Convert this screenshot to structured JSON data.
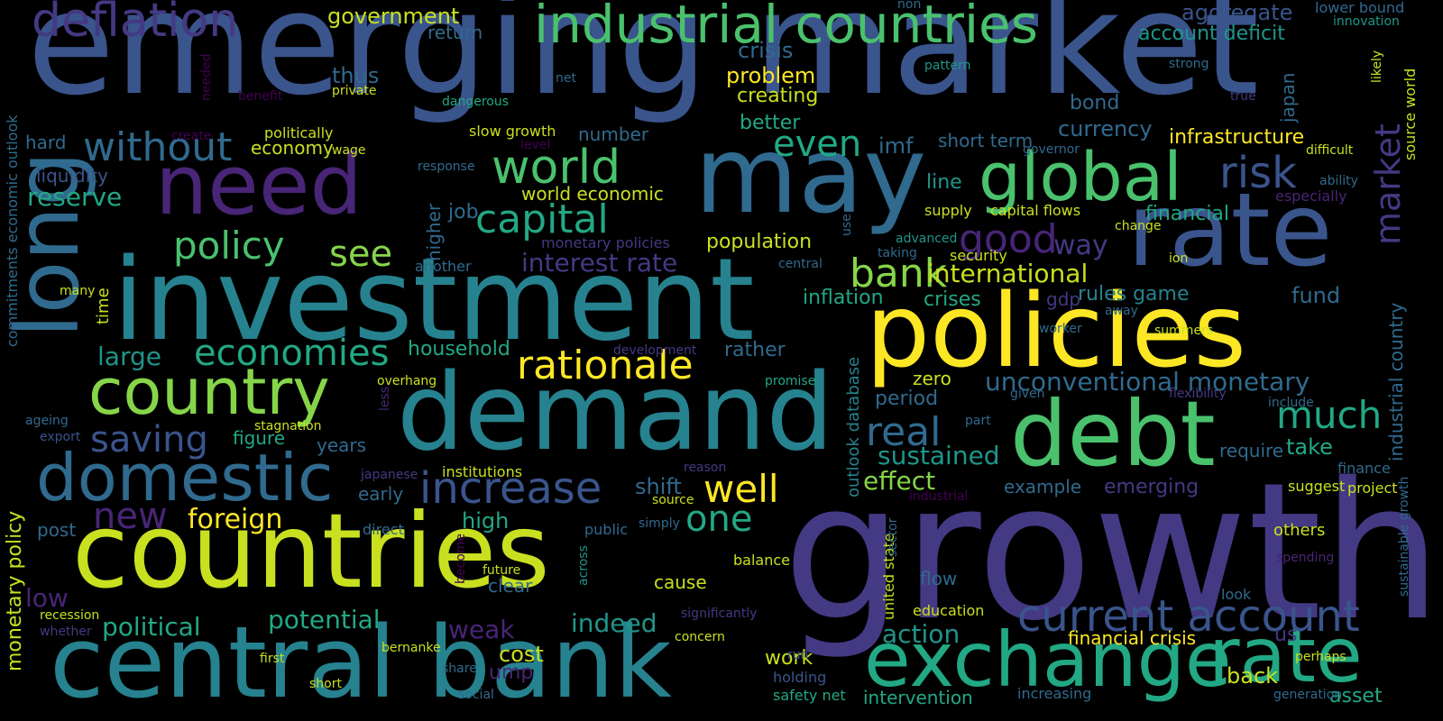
{
  "palette": {
    "background": "#000000",
    "yellow": "#fde725",
    "lime": "#c8e020",
    "lightgreen": "#86d549",
    "green": "#4ac16d",
    "seagreen": "#22a884",
    "teal": "#1f958b",
    "cyan": "#26828e",
    "steel": "#306a8e",
    "slate": "#3a548c",
    "indigo": "#443983",
    "violet": "#482576",
    "purple": "#440154"
  },
  "words": {
    "emerging_market": "emerging market",
    "growth": "growth",
    "investment": "investment",
    "policies": "policies",
    "demand": "demand",
    "countries": "countries",
    "central_bank": "central bank",
    "may": "may",
    "need": "need",
    "long": "long",
    "debt": "debt",
    "rate": "rate",
    "rate2": "rate",
    "exchange": "exchange",
    "industrial_countries": "industrial countries",
    "global": "global",
    "country": "country",
    "domestic": "domestic",
    "deflation": "deflation",
    "world": "world",
    "capital": "capital",
    "rationale": "rationale",
    "increase": "increase",
    "current_account": "current account",
    "without": "without",
    "policy": "policy",
    "economies": "economies",
    "saving": "saving",
    "new": "new",
    "foreign": "foreign",
    "well": "well",
    "one": "one",
    "bank": "bank",
    "good": "good",
    "risk": "risk",
    "even": "even",
    "real": "real",
    "much": "much",
    "market": "market",
    "sustained": "sustained",
    "effect": "effect",
    "potential": "potential",
    "political": "political",
    "action": "action",
    "indeed": "indeed",
    "weak": "weak",
    "low": "low",
    "see": "see",
    "international": "international",
    "unconventional_monetary": "unconventional monetary",
    "large": "large",
    "reserve": "reserve",
    "interest_rate": "interest rate",
    "way": "way",
    "government": "government",
    "aggregate": "aggregate",
    "account_deficit": "account deficit",
    "lower_bound": "lower bound",
    "innovation": "innovation",
    "return": "return",
    "crisis": "crisis",
    "problem": "problem",
    "creating": "creating",
    "bond": "bond",
    "japan": "japan",
    "thus": "thus",
    "hard": "hard",
    "economy": "economy",
    "better": "better",
    "number": "number",
    "currency": "currency",
    "infrastructure": "infrastructure",
    "short_term": "short term",
    "imf": "imf",
    "slow_growth": "slow growth",
    "politically": "politically",
    "liquidity": "liquidity",
    "job": "job",
    "world_economic": "world economic",
    "higher": "higher",
    "line": "line",
    "supply": "supply",
    "capital_flows": "capital flows",
    "financial": "financial",
    "change": "change",
    "monetary_policies": "monetary policies",
    "population": "population",
    "advanced": "advanced",
    "taking": "taking",
    "security": "security",
    "central": "central",
    "ion": "ion",
    "fund": "fund",
    "inflation": "inflation",
    "crises": "crises",
    "gdp": "gdp",
    "rules_game": "rules game",
    "household": "household",
    "rather": "rather",
    "time": "time",
    "many": "many",
    "figure": "figure",
    "years": "years",
    "stagnation": "stagnation",
    "ageing": "ageing",
    "export": "export",
    "early": "early",
    "institutions": "institutions",
    "japanese": "japanese",
    "high": "high",
    "shift": "shift",
    "source": "source",
    "post": "post",
    "direct": "direct",
    "public": "public",
    "simply": "simply",
    "clear": "clear",
    "balance": "balance",
    "cause": "cause",
    "future": "future",
    "zero": "zero",
    "period": "period",
    "require": "require",
    "take": "take",
    "example": "example",
    "emerging": "emerging",
    "flow": "flow",
    "education": "education",
    "financial_crisis": "financial crisis",
    "us": "us",
    "back": "back",
    "asset": "asset",
    "intervention": "intervention",
    "cost": "cost",
    "ump": "ump",
    "work": "work",
    "holding": "holding",
    "safety_net": "safety net",
    "run": "run",
    "concern": "concern",
    "significantly": "significantly",
    "bernanke": "bernanke",
    "share": "share",
    "social": "social",
    "short": "short",
    "first": "first",
    "recession": "recession",
    "whether": "whether",
    "overhang": "overhang",
    "promise": "promise",
    "given": "given",
    "part": "part",
    "flexibility": "flexibility",
    "include": "include",
    "worker": "worker",
    "summers": "summers",
    "away": "away",
    "development": "development",
    "reason": "reason",
    "industrial": "industrial",
    "suggest": "suggest",
    "project": "project",
    "finance": "finance",
    "others": "others",
    "spending": "spending",
    "look": "look",
    "perhaps": "perhaps",
    "increasing": "increasing",
    "generation": "generation",
    "especially": "especially",
    "ability": "ability",
    "difficult": "difficult",
    "true": "true",
    "governor": "governor",
    "strong": "strong",
    "pattern": "pattern",
    "net": "net",
    "non": "non",
    "dangerous": "dangerous",
    "private": "private",
    "benefit": "benefit",
    "needed": "needed",
    "create": "create",
    "wage": "wage",
    "level": "level",
    "response": "response",
    "another": "another",
    "likely": "likely",
    "use": "use",
    "commitments_economic_outlook": "commitments economic outlook",
    "monetary_policy": "monetary policy",
    "outlook_database": "outlook database",
    "united_state": "united state",
    "sector": "sector",
    "across": "across",
    "become": "become",
    "less": "less",
    "industrial_country": "industrial country",
    "sustainable_growth": "sustainable growth",
    "source_world": "source world"
  }
}
